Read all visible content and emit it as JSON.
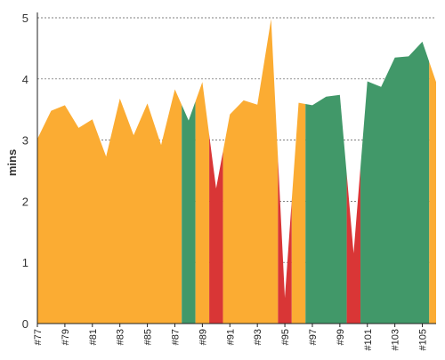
{
  "chart_data": {
    "type": "area",
    "title": "",
    "xlabel": "",
    "ylabel": "mins",
    "ylim": [
      0,
      5
    ],
    "yticks": [
      0,
      1,
      2,
      3,
      4,
      5
    ],
    "grid": "horizontal dashed",
    "legend": "none",
    "colors": {
      "other": "#fbac33",
      "faster": "#419869",
      "slower": "#d93636"
    },
    "x_tick_labels": [
      "#77",
      "#79",
      "#81",
      "#83",
      "#85",
      "#87",
      "#89",
      "#91",
      "#93",
      "#95",
      "#97",
      "#99",
      "#101",
      "#103",
      "#105"
    ],
    "x_tick_builds": [
      77,
      79,
      81,
      83,
      85,
      87,
      89,
      91,
      93,
      95,
      97,
      99,
      101,
      103,
      105
    ],
    "x_start": 77,
    "x_end": 106,
    "points": [
      {
        "x": 77,
        "y": 3.02
      },
      {
        "x": 78,
        "y": 3.48
      },
      {
        "x": 79,
        "y": 3.57
      },
      {
        "x": 80,
        "y": 3.2
      },
      {
        "x": 81,
        "y": 3.34
      },
      {
        "x": 82,
        "y": 2.73
      },
      {
        "x": 83,
        "y": 3.68
      },
      {
        "x": 84,
        "y": 3.08
      },
      {
        "x": 85,
        "y": 3.6
      },
      {
        "x": 86,
        "y": 2.92
      },
      {
        "x": 87,
        "y": 3.83
      },
      {
        "x": 88,
        "y": 3.32
      },
      {
        "x": 89,
        "y": 3.95
      },
      {
        "x": 90,
        "y": 2.21
      },
      {
        "x": 91,
        "y": 3.42
      },
      {
        "x": 92,
        "y": 3.65
      },
      {
        "x": 93,
        "y": 3.58
      },
      {
        "x": 94,
        "y": 4.98
      },
      {
        "x": 95,
        "y": 0.42
      },
      {
        "x": 96,
        "y": 3.61
      },
      {
        "x": 97,
        "y": 3.57
      },
      {
        "x": 98,
        "y": 3.71
      },
      {
        "x": 99,
        "y": 3.74
      },
      {
        "x": 100,
        "y": 1.15
      },
      {
        "x": 101,
        "y": 3.96
      },
      {
        "x": 102,
        "y": 3.87
      },
      {
        "x": 103,
        "y": 4.35
      },
      {
        "x": 104,
        "y": 4.37
      },
      {
        "x": 105,
        "y": 4.61
      },
      {
        "x": 106,
        "y": 3.95
      }
    ],
    "bands": [
      {
        "from": 77,
        "to": 87.5,
        "status": "other"
      },
      {
        "from": 87.5,
        "to": 88.5,
        "status": "faster"
      },
      {
        "from": 88.5,
        "to": 89.5,
        "status": "other"
      },
      {
        "from": 89.5,
        "to": 90.5,
        "status": "slower"
      },
      {
        "from": 90.5,
        "to": 94.5,
        "status": "other"
      },
      {
        "from": 94.5,
        "to": 95.5,
        "status": "slower"
      },
      {
        "from": 95.5,
        "to": 96.5,
        "status": "other"
      },
      {
        "from": 96.5,
        "to": 99.5,
        "status": "faster"
      },
      {
        "from": 99.5,
        "to": 100.5,
        "status": "slower"
      },
      {
        "from": 100.5,
        "to": 105.5,
        "status": "faster"
      },
      {
        "from": 105.5,
        "to": 106,
        "status": "other"
      }
    ]
  }
}
